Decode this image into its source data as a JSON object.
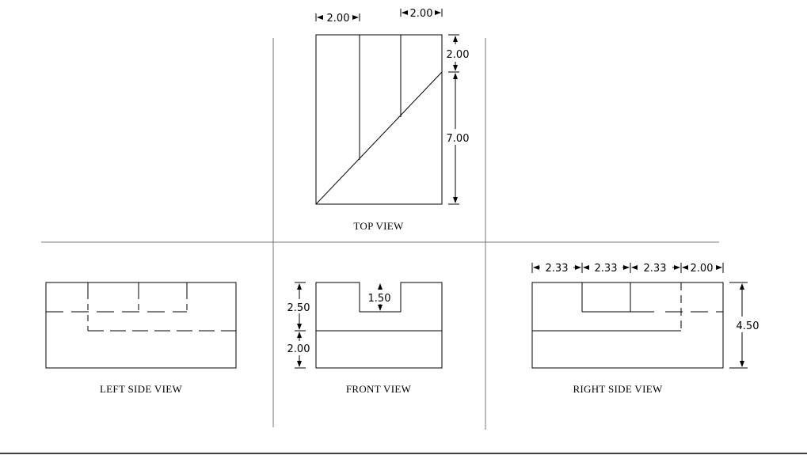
{
  "views": {
    "top": {
      "caption": "TOP VIEW",
      "dim_left_width": "2.00",
      "dim_right_width": "2.00",
      "dim_top_depth": "2.00",
      "dim_lower_depth": "7.00"
    },
    "left": {
      "caption": "LEFT SIDE VIEW"
    },
    "front": {
      "caption": "FRONT VIEW",
      "dim_upper_height": "2.50",
      "dim_lower_height": "2.00",
      "dim_slot_depth": "1.50"
    },
    "right": {
      "caption": "RIGHT SIDE VIEW",
      "dim_a": "2.33",
      "dim_b": "2.33",
      "dim_c": "2.33",
      "dim_d": "2.00",
      "dim_total_height": "4.50"
    }
  },
  "colors": {
    "line": "#000000",
    "background": "#ffffff"
  }
}
